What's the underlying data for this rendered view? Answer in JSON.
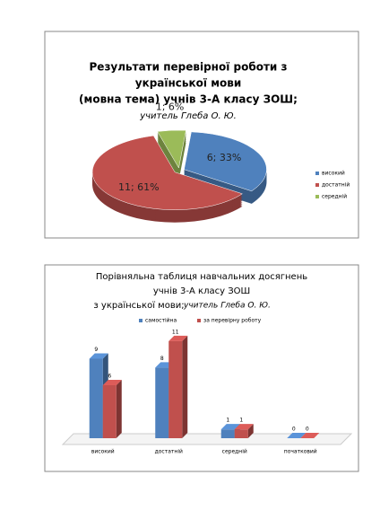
{
  "chart_data": [
    {
      "type": "pie",
      "title": [
        "Результати перевірної роботи з",
        "української мови",
        "(мовна тема) учнів 3-А класу ЗОШ;"
      ],
      "subtitle": "учитель Глеба О. Ю.",
      "categories": [
        "високий",
        "достатній",
        "середній"
      ],
      "values": [
        6,
        11,
        1
      ],
      "value_labels": [
        "6; 33%",
        "11; 61%",
        "1; 6%"
      ],
      "colors": [
        "#4f81bd",
        "#c0504d",
        "#9bbb59"
      ],
      "legend": "right"
    },
    {
      "type": "bar",
      "title": [
        "Порівняльна таблиця навчальних  досягнень",
        "учнів 3-А класу ЗОШ",
        "з української мови;"
      ],
      "subtitle": "учитель Глеба  О. Ю.",
      "categories": [
        "високий",
        "достатній",
        "середній",
        "початковий"
      ],
      "series": [
        {
          "name": "самостійна",
          "color": "#4f81bd",
          "values": [
            9,
            8,
            1,
            0
          ]
        },
        {
          "name": "за перевірну роботу",
          "color": "#c0504d",
          "values": [
            6,
            11,
            1,
            0
          ]
        }
      ],
      "ylim": [
        0,
        12
      ],
      "legend": "top"
    }
  ]
}
